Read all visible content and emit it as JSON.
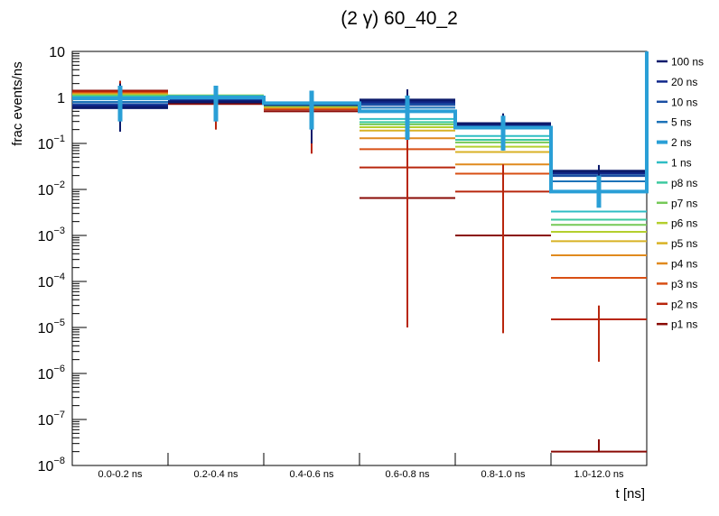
{
  "chart_data": {
    "type": "step-histogram",
    "title": "(2 γ) 60_40_2",
    "xlabel": "t [ns]",
    "ylabel": "frac events/ns",
    "yscale": "log",
    "ylim": [
      1e-08,
      10
    ],
    "y_tick_labels": [
      {
        "base": "10",
        "exp": "",
        "value": 10
      },
      {
        "base": "1",
        "exp": "",
        "value": 1
      },
      {
        "base": "10",
        "exp": "−1",
        "value": 0.1
      },
      {
        "base": "10",
        "exp": "−2",
        "value": 0.01
      },
      {
        "base": "10",
        "exp": "−3",
        "value": 0.001
      },
      {
        "base": "10",
        "exp": "−4",
        "value": 0.0001
      },
      {
        "base": "10",
        "exp": "−5",
        "value": 1e-05
      },
      {
        "base": "10",
        "exp": "−6",
        "value": 1e-06
      },
      {
        "base": "10",
        "exp": "−7",
        "value": 1e-07
      },
      {
        "base": "10",
        "exp": "−8",
        "value": 1e-08
      }
    ],
    "categories": [
      "0.0-0.2 ns",
      "0.2-0.4 ns",
      "0.4-0.6 ns",
      "0.6-0.8 ns",
      "0.8-1.0 ns",
      "1.0-12.0 ns"
    ],
    "highlight_series": "2 ns",
    "series": [
      {
        "name": "100 ns",
        "color": "#0b1a6b",
        "values": [
          0.6,
          0.8,
          0.7,
          0.88,
          0.27,
          0.025
        ],
        "err_lo": [
          0.18,
          0.4,
          0.1,
          0.14,
          0.07,
          0.009
        ],
        "err_hi": [
          2.0,
          1.7,
          1.2,
          1.5,
          0.45,
          0.034
        ]
      },
      {
        "name": "20 ns",
        "color": "#10278a",
        "values": [
          0.65,
          0.82,
          0.7,
          0.8,
          0.26,
          0.023
        ],
        "err_lo": null,
        "err_hi": null
      },
      {
        "name": "10 ns",
        "color": "#1a4ea3",
        "values": [
          0.7,
          0.85,
          0.7,
          0.7,
          0.25,
          0.02
        ],
        "err_lo": null,
        "err_hi": null
      },
      {
        "name": "5 ns",
        "color": "#1c72b8",
        "values": [
          0.8,
          0.9,
          0.72,
          0.6,
          0.24,
          0.015
        ],
        "err_lo": null,
        "err_hi": null
      },
      {
        "name": "2 ns",
        "color": "#2a9fd6",
        "values": [
          0.95,
          1.0,
          0.75,
          0.5,
          0.22,
          0.009
        ],
        "err_lo": [
          0.3,
          0.3,
          0.2,
          0.12,
          0.07,
          0.004
        ],
        "err_hi": [
          1.8,
          1.8,
          1.4,
          1.1,
          0.4,
          0.02
        ]
      },
      {
        "name": "1 ns",
        "color": "#2ebdc4",
        "values": [
          1.0,
          1.05,
          0.7,
          0.34,
          0.145,
          0.0033
        ],
        "err_lo": null,
        "err_hi": null
      },
      {
        "name": "p8 ns",
        "color": "#3dc9a0",
        "values": [
          1.05,
          1.08,
          0.68,
          0.29,
          0.12,
          0.0022
        ],
        "err_lo": null,
        "err_hi": null
      },
      {
        "name": "p7 ns",
        "color": "#75c957",
        "values": [
          1.1,
          1.1,
          0.66,
          0.26,
          0.105,
          0.0017
        ],
        "err_lo": null,
        "err_hi": null
      },
      {
        "name": "p6 ns",
        "color": "#b4cf2e",
        "values": [
          1.12,
          1.1,
          0.64,
          0.225,
          0.085,
          0.0012
        ],
        "err_lo": null,
        "err_hi": null
      },
      {
        "name": "p5 ns",
        "color": "#d8b224",
        "values": [
          1.15,
          1.1,
          0.62,
          0.19,
          0.065,
          0.00075
        ],
        "err_lo": null,
        "err_hi": null
      },
      {
        "name": "p4 ns",
        "color": "#e08a1e",
        "values": [
          1.2,
          1.05,
          0.6,
          0.13,
          0.035,
          0.00037
        ],
        "err_lo": null,
        "err_hi": null
      },
      {
        "name": "p3 ns",
        "color": "#d84f14",
        "values": [
          1.25,
          1.0,
          0.57,
          0.075,
          0.022,
          0.00012
        ],
        "err_lo": null,
        "err_hi": null
      },
      {
        "name": "p2 ns",
        "color": "#b8260d",
        "values": [
          1.35,
          0.95,
          0.55,
          0.03,
          0.009,
          1.5e-05
        ],
        "err_lo": [
          0.3,
          0.2,
          0.06,
          1e-05,
          7.5e-06,
          1.8e-06
        ],
        "err_hi": [
          2.3,
          1.6,
          1.0,
          0.16,
          0.035,
          3e-05
        ]
      },
      {
        "name": "p1 ns",
        "color": "#8a0a05",
        "values": [
          1.4,
          0.72,
          0.5,
          0.0065,
          0.001,
          2e-08
        ],
        "err_lo": null,
        "err_hi": [
          null,
          null,
          null,
          null,
          null,
          3.7e-08
        ]
      }
    ]
  }
}
